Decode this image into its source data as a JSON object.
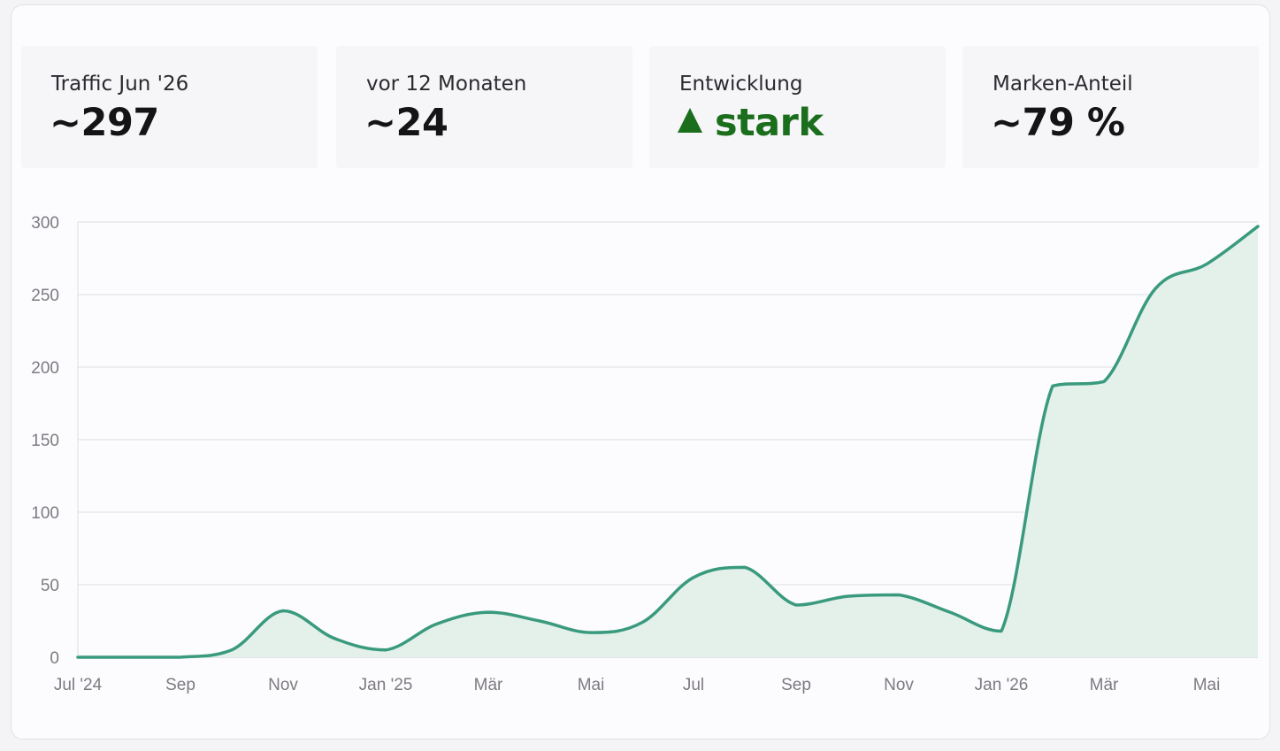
{
  "kpis": [
    {
      "label": "Traffic Jun '26",
      "value": "~297"
    },
    {
      "label": "vor 12 Monaten",
      "value": "~24"
    },
    {
      "label": "Entwicklung",
      "value": "stark",
      "icon": "trend-up-icon",
      "color": "#1a6e1c"
    },
    {
      "label": "Marken-Anteil",
      "value": "~79 %"
    }
  ],
  "menu_icon": "more-horizontal-icon",
  "colors": {
    "line": "#3a9a7e",
    "area": "#e3f1ea",
    "grid": "#dedde2",
    "positive": "#1a6e1c"
  },
  "chart_data": {
    "type": "area",
    "title": "",
    "xlabel": "",
    "ylabel": "",
    "ylim": [
      0,
      300
    ],
    "yticks": [
      0,
      50,
      100,
      150,
      200,
      250,
      300
    ],
    "grid": true,
    "x_tick_labels": [
      "Jul '24",
      "Sep",
      "Nov",
      "Jan '25",
      "Mär",
      "Mai",
      "Jul",
      "Sep",
      "Nov",
      "Jan '26",
      "Mär",
      "Mai"
    ],
    "series": [
      {
        "points": [
          {
            "x": "2024-07",
            "y": 0
          },
          {
            "x": "2024-08",
            "y": 0
          },
          {
            "x": "2024-09",
            "y": 0
          },
          {
            "x": "2024-10",
            "y": 5
          },
          {
            "x": "2024-11",
            "y": 32
          },
          {
            "x": "2024-12",
            "y": 13
          },
          {
            "x": "2025-01",
            "y": 5
          },
          {
            "x": "2025-02",
            "y": 23
          },
          {
            "x": "2025-03",
            "y": 31
          },
          {
            "x": "2025-04",
            "y": 25
          },
          {
            "x": "2025-05",
            "y": 17
          },
          {
            "x": "2025-06",
            "y": 24
          },
          {
            "x": "2025-07",
            "y": 55
          },
          {
            "x": "2025-08",
            "y": 62
          },
          {
            "x": "2025-09",
            "y": 36
          },
          {
            "x": "2025-10",
            "y": 42
          },
          {
            "x": "2025-11",
            "y": 43
          },
          {
            "x": "2025-12",
            "y": 31
          },
          {
            "x": "2026-01",
            "y": 18
          },
          {
            "x": "2026-02",
            "y": 187
          },
          {
            "x": "2026-03",
            "y": 190
          },
          {
            "x": "2026-04",
            "y": 254
          },
          {
            "x": "2026-05",
            "y": 271
          },
          {
            "x": "2026-06",
            "y": 297
          }
        ]
      }
    ]
  }
}
